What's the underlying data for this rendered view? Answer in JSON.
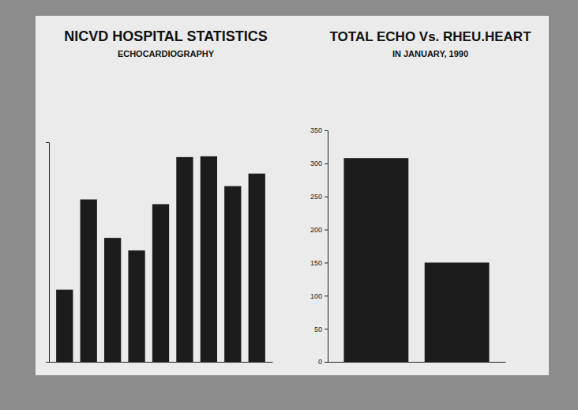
{
  "chart_data": [
    {
      "type": "bar",
      "title": "NICVD HOSPITAL STATISTICS",
      "subtitle": "ECHOCARDIOGRAPHY",
      "categories": [
        null,
        null,
        null,
        null,
        null,
        null,
        null,
        null,
        null
      ],
      "values": [
        92,
        207,
        158,
        142,
        201,
        261,
        262,
        224,
        240
      ],
      "color": "#1c1c1c",
      "ylim": [
        0,
        280
      ],
      "tick_labels": false
    },
    {
      "type": "bar",
      "title": "TOTAL ECHO Vs. RHEU.HEART",
      "subtitle": "IN JANUARY, 1990",
      "categories": [
        null,
        null
      ],
      "values": [
        308,
        150
      ],
      "color": "#1c1c1c",
      "ylim": [
        0,
        350
      ],
      "yticks": [
        0,
        50,
        100,
        150,
        200,
        250,
        300,
        350
      ],
      "tick_labels": "y"
    }
  ]
}
